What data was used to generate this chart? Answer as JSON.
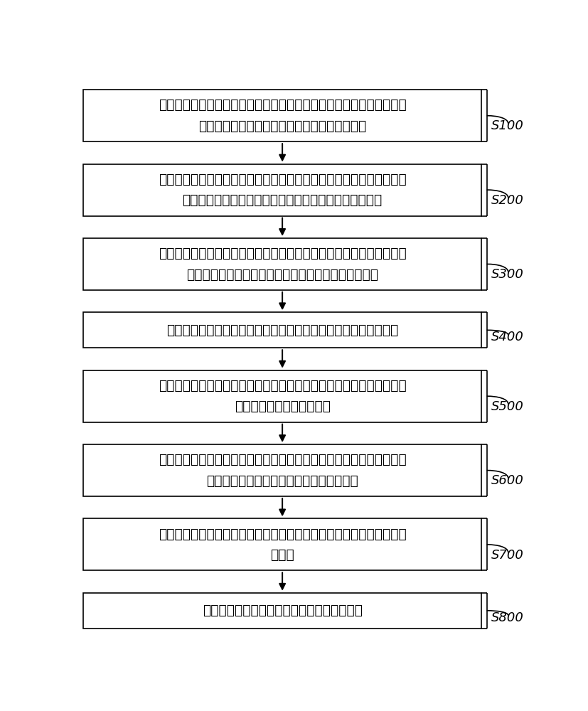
{
  "steps": [
    {
      "label": "S100",
      "text": "通过加样孔向管路层注入样品，通过第一试剂管向管路层注入裂解液，\n样品和裂解液在管路层内混合反应，形成生成物",
      "nlines": 2
    },
    {
      "label": "S200",
      "text": "通过与第一试剂管连接的第一活塞拉出，以及与加样孔连通的第二试剂\n管内设置的第二活塞推入，将生成物沿着管路推入纯化仓",
      "nlines": 2
    },
    {
      "label": "S300",
      "text": "启动超声单元，超声单元设置在纯化仓的下方，超声单元将纯化仓内的\n磁珠打散，使得生成物中的核酸物质吸附在磁珠的表面",
      "nlines": 2
    },
    {
      "label": "S400",
      "text": "启动磁吸单元，将磁吸单元内的磁铁推至纯化仓的下方，吸住磁珠",
      "nlines": 1
    },
    {
      "label": "S500",
      "text": "将第三试剂管内的清洗液在第三活塞的推动下，推入纯化仓，对纯化仓\n内的磁珠进行至少一次清洗",
      "nlines": 2
    },
    {
      "label": "S600",
      "text": "将第四试剂管内的洗脱液在第四活塞的推动下，推入纯化仓，将磁珠上\n的所吸附的核酸物质洗脱，使其与磁珠分离",
      "nlines": 2
    },
    {
      "label": "S700",
      "text": "通过第二试剂管连接的第二活塞推入，将洗脱后的核酸推入管路层内的\n扩增仓",
      "nlines": 2
    },
    {
      "label": "S800",
      "text": "对所述扩增仓内进行温度控制，实现扩增反应",
      "nlines": 1
    }
  ],
  "box_color": "#ffffff",
  "box_edge_color": "#000000",
  "arrow_color": "#000000",
  "label_color": "#000000",
  "text_color": "#000000",
  "background_color": "#ffffff",
  "font_size": 13.5,
  "label_font_size": 13
}
